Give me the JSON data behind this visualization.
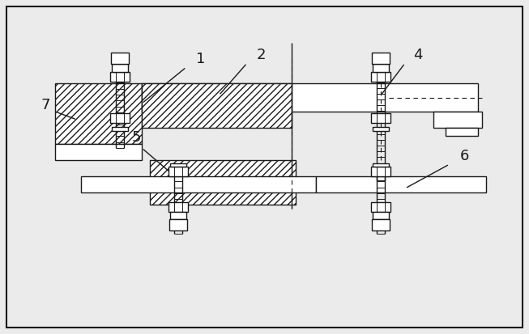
{
  "bg_color": "#ebebeb",
  "line_color": "#1a1a1a",
  "fig_w": 6.53,
  "fig_h": 4.13,
  "dpi": 100
}
